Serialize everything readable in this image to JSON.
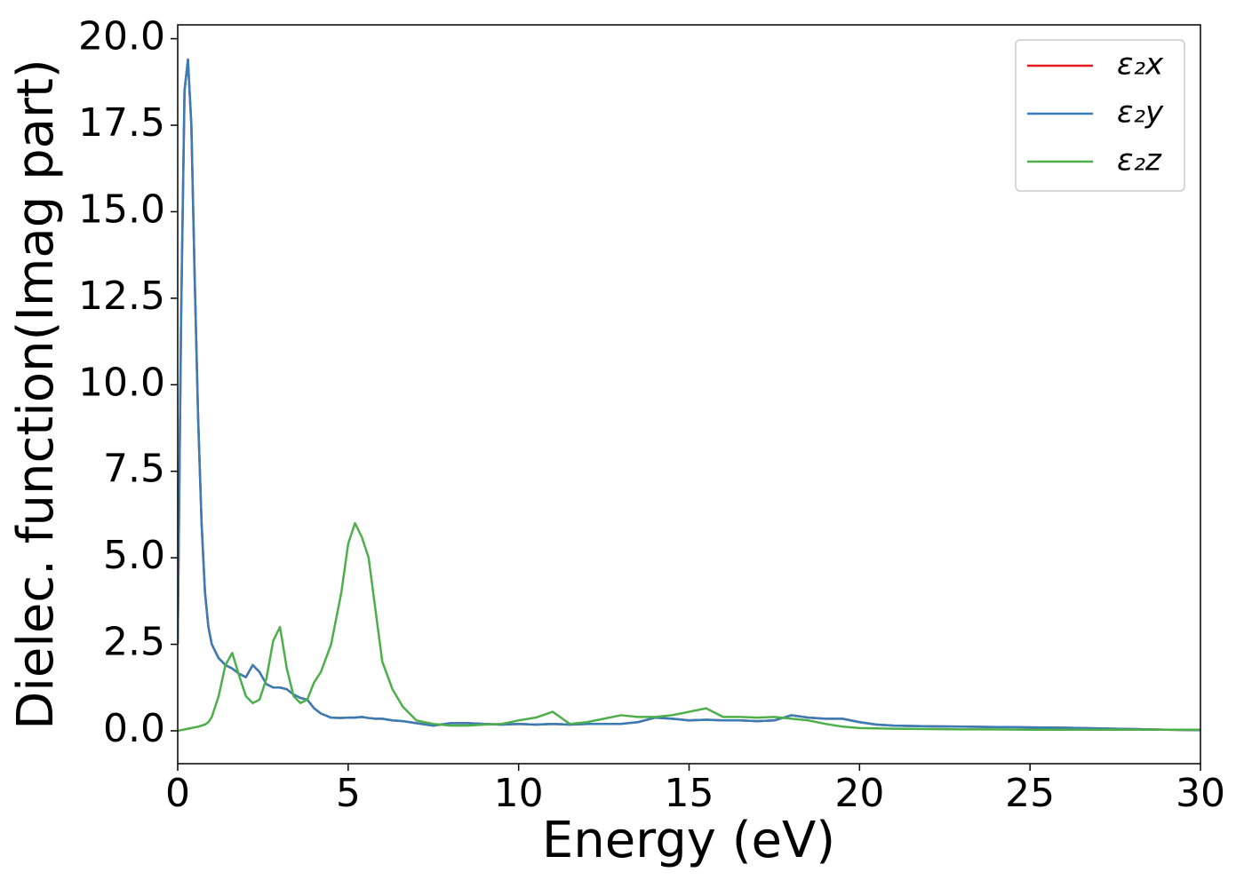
{
  "chart_data": {
    "type": "line",
    "xlabel": "Energy (eV)",
    "ylabel": "Dielec. function(Imag part)",
    "x": [
      0,
      0.1,
      0.2,
      0.3,
      0.4,
      0.5,
      0.6,
      0.7,
      0.8,
      0.9,
      1.0,
      1.2,
      1.4,
      1.6,
      1.8,
      2.0,
      2.2,
      2.4,
      2.6,
      2.8,
      3.0,
      3.2,
      3.4,
      3.6,
      3.8,
      4.0,
      4.2,
      4.5,
      4.8,
      5.0,
      5.2,
      5.4,
      5.6,
      5.8,
      6.0,
      6.3,
      6.6,
      7.0,
      7.5,
      8,
      8.5,
      9,
      9.5,
      10,
      10.5,
      11,
      11.5,
      12,
      12.5,
      13,
      13.5,
      14,
      14.5,
      15,
      15.5,
      16,
      16.5,
      17,
      17.5,
      18,
      18.5,
      19,
      19.5,
      20,
      20.5,
      21,
      22,
      23,
      24,
      25,
      26,
      27,
      28,
      29,
      30
    ],
    "series": [
      {
        "name": "ε₂x",
        "color": "#e41a1c",
        "values": [
          2.5,
          12,
          18.5,
          19.4,
          17.5,
          13,
          9,
          6,
          4,
          3,
          2.5,
          2.1,
          1.9,
          1.8,
          1.65,
          1.55,
          1.9,
          1.7,
          1.35,
          1.25,
          1.25,
          1.2,
          1.05,
          0.95,
          0.9,
          0.65,
          0.5,
          0.38,
          0.37,
          0.38,
          0.38,
          0.4,
          0.37,
          0.35,
          0.35,
          0.3,
          0.28,
          0.22,
          0.15,
          0.22,
          0.22,
          0.2,
          0.18,
          0.2,
          0.18,
          0.2,
          0.18,
          0.2,
          0.2,
          0.2,
          0.25,
          0.38,
          0.35,
          0.3,
          0.32,
          0.3,
          0.3,
          0.28,
          0.3,
          0.45,
          0.38,
          0.35,
          0.35,
          0.25,
          0.18,
          0.15,
          0.13,
          0.12,
          0.11,
          0.1,
          0.09,
          0.07,
          0.05,
          0.03,
          0.02
        ]
      },
      {
        "name": "ε₂y",
        "color": "#377eb8",
        "values": [
          2.5,
          12,
          18.5,
          19.4,
          17.5,
          13,
          9,
          6,
          4,
          3,
          2.5,
          2.1,
          1.9,
          1.8,
          1.65,
          1.55,
          1.9,
          1.7,
          1.35,
          1.25,
          1.25,
          1.2,
          1.05,
          0.95,
          0.9,
          0.65,
          0.5,
          0.38,
          0.37,
          0.38,
          0.38,
          0.4,
          0.37,
          0.35,
          0.35,
          0.3,
          0.28,
          0.22,
          0.15,
          0.22,
          0.22,
          0.2,
          0.18,
          0.2,
          0.18,
          0.2,
          0.18,
          0.2,
          0.2,
          0.2,
          0.25,
          0.38,
          0.35,
          0.3,
          0.32,
          0.3,
          0.3,
          0.28,
          0.3,
          0.45,
          0.38,
          0.35,
          0.35,
          0.25,
          0.18,
          0.15,
          0.13,
          0.12,
          0.11,
          0.1,
          0.09,
          0.07,
          0.05,
          0.03,
          0.02
        ]
      },
      {
        "name": "ε₂z",
        "color": "#4daf4a",
        "values": [
          0,
          0.02,
          0.04,
          0.06,
          0.08,
          0.1,
          0.12,
          0.15,
          0.18,
          0.25,
          0.4,
          1.0,
          1.9,
          2.25,
          1.6,
          1.0,
          0.8,
          0.9,
          1.5,
          2.6,
          3.0,
          1.8,
          1.0,
          0.8,
          0.9,
          1.4,
          1.7,
          2.5,
          4.0,
          5.4,
          6.0,
          5.6,
          5.0,
          3.5,
          2.0,
          1.2,
          0.7,
          0.3,
          0.2,
          0.15,
          0.15,
          0.18,
          0.2,
          0.3,
          0.38,
          0.55,
          0.2,
          0.25,
          0.35,
          0.45,
          0.4,
          0.4,
          0.45,
          0.55,
          0.65,
          0.4,
          0.4,
          0.38,
          0.4,
          0.35,
          0.3,
          0.2,
          0.12,
          0.08,
          0.07,
          0.06,
          0.05,
          0.04,
          0.04,
          0.03,
          0.03,
          0.03,
          0.03,
          0.03,
          0.03
        ]
      }
    ],
    "xlim": [
      0,
      30
    ],
    "xticks": [
      0,
      5,
      10,
      15,
      20,
      25,
      30
    ],
    "ylim": [
      -0.95,
      20.4
    ],
    "yticks": [
      {
        "value": 0,
        "label": "0.0"
      },
      2.5,
      {
        "value": 5,
        "label": "5.0"
      },
      7.5,
      {
        "value": 10,
        "label": "10.0"
      },
      12.5,
      {
        "value": 15,
        "label": "15.0"
      },
      17.5,
      {
        "value": 20,
        "label": "20.0"
      }
    ],
    "legend": "upper right"
  }
}
